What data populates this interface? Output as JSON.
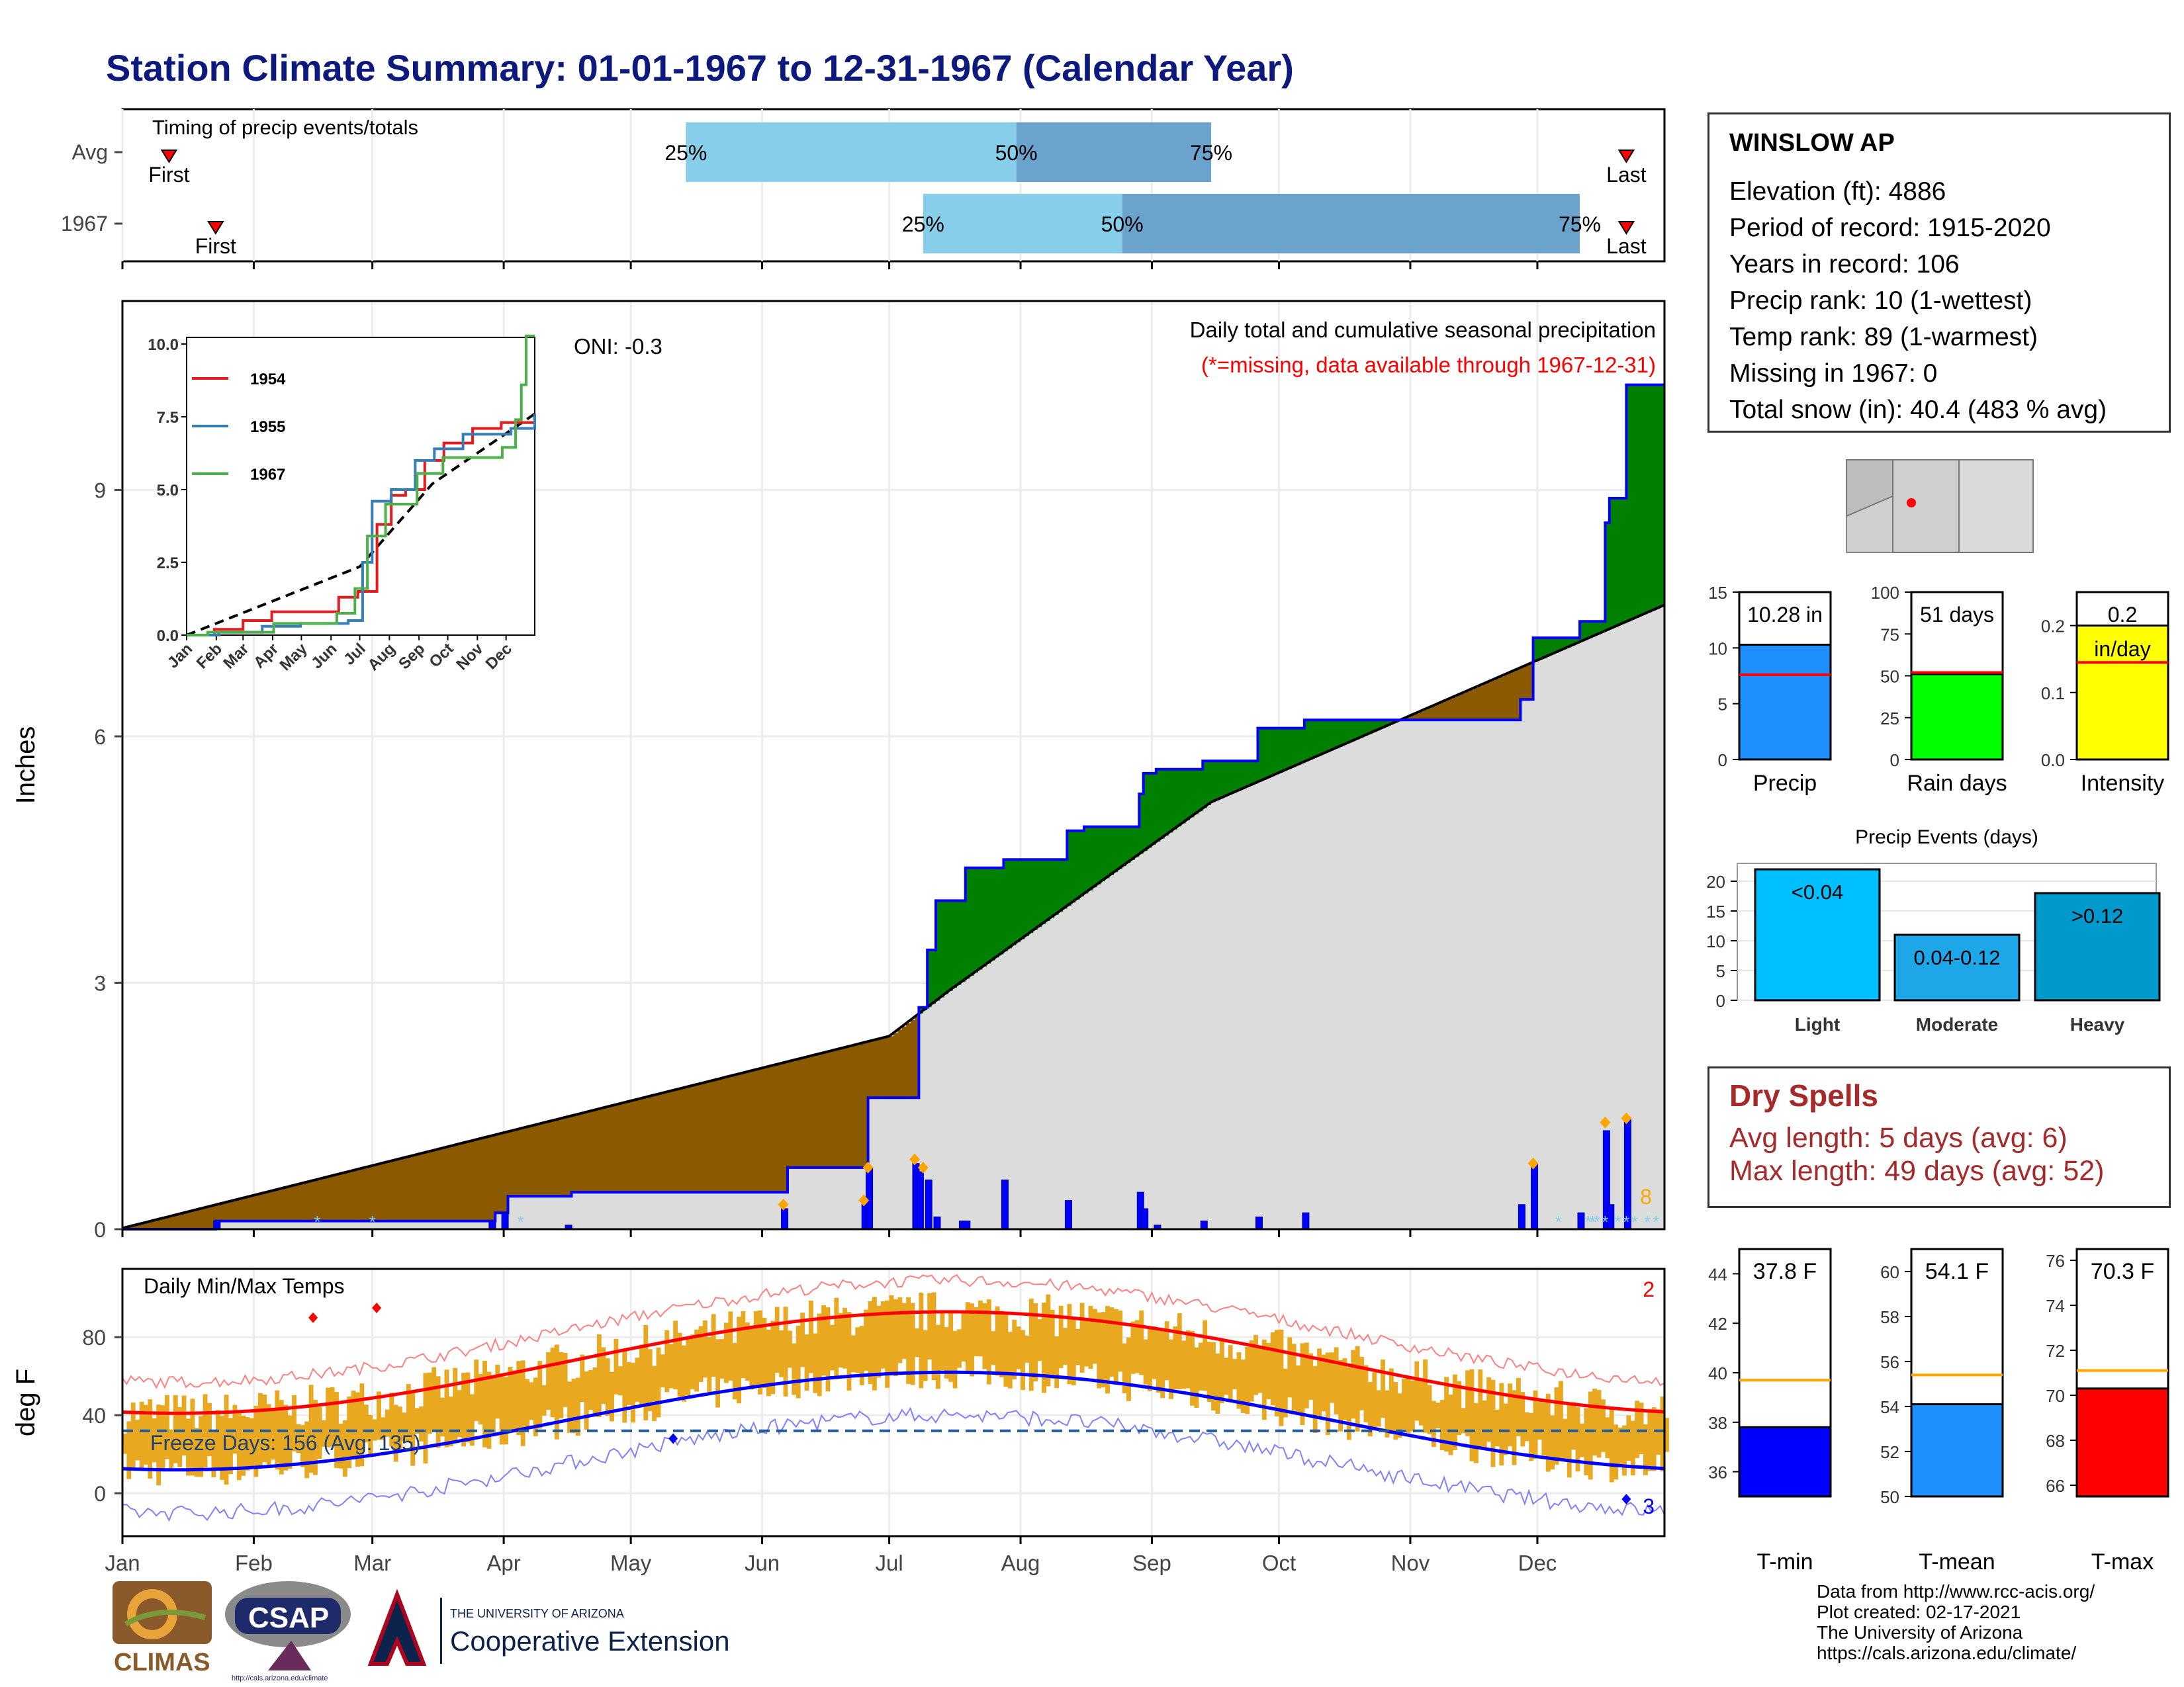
{
  "title": "Station Climate Summary: 01-01-1967 to 12-31-1967 (Calendar Year)",
  "colors": {
    "title": "#0c1a7d",
    "ahead": "#008000",
    "behind": "#8b5a00",
    "normal_fill": "#dcdcdc",
    "obs_line": "#0000ff",
    "tmax_fill": "#e8a920",
    "red": "#ff0000",
    "blue": "#0000ff",
    "q_light": "#87ceeb",
    "q_dark": "#6ba3cc",
    "dry": "#a52a2a"
  },
  "timing": {
    "label": "Timing of precip events/totals",
    "rows": [
      "Avg",
      "1967"
    ],
    "avg": {
      "first_day": 12,
      "last_day": 356,
      "p25_day": 134,
      "p50_day": 212,
      "p75_day": 258
    },
    "obs": {
      "first_day": 23,
      "last_day": 356,
      "p25_day": 190,
      "p50_day": 237,
      "p75_day": 345
    },
    "pct_labels": [
      "25%",
      "50%",
      "75%"
    ],
    "first_label": "First",
    "last_label": "Last"
  },
  "precip_panel": {
    "ylabel": "Inches",
    "ytick_labels": [
      "0",
      "3",
      "6",
      "9"
    ],
    "caption1": "Daily total and cumulative seasonal precipitation",
    "caption2": "(*=missing, data available through 1967-12-31)",
    "oni": "ONI: -0.3",
    "count_label": "8",
    "ylim": [
      0,
      11.3
    ]
  },
  "temp_panel": {
    "ylabel": "deg F",
    "ytick_labels": [
      "0",
      "40",
      "80"
    ],
    "title": "Daily Min/Max Temps",
    "freeze_label": "Freeze Days: 156 (Avg: 135)",
    "record_high_count": "2",
    "record_low_count": "3",
    "ylim": [
      -22,
      115
    ],
    "freeze_line": 32
  },
  "months": [
    "Jan",
    "Feb",
    "Mar",
    "Apr",
    "May",
    "Jun",
    "Jul",
    "Aug",
    "Sep",
    "Oct",
    "Nov",
    "Dec"
  ],
  "station": {
    "name": "WINSLOW AP",
    "lines": [
      "Elevation (ft): 4886",
      "Period of record: 1915-2020",
      "Years in record: 106",
      "Precip rank: 10 (1-wettest)",
      "Temp rank: 89 (1-warmest)",
      "Missing in 1967: 0",
      "Total snow (in): 40.4 (483 % avg)"
    ]
  },
  "summary_bars": [
    {
      "label": "Precip",
      "value_label": "10.28 in",
      "value": 10.28,
      "avg": 7.6,
      "ylim": [
        0,
        15
      ],
      "ticks": [
        "0",
        "5",
        "10",
        "15"
      ],
      "color": "#1e90ff"
    },
    {
      "label": "Rain days",
      "value_label": "51 days",
      "value": 51,
      "avg": 52,
      "ylim": [
        0,
        100
      ],
      "ticks": [
        "0",
        "25",
        "50",
        "75",
        "100"
      ],
      "color": "#00ff00"
    },
    {
      "label": "Intensity",
      "value_label": "0.2\nin/day",
      "value": 0.2,
      "avg": 0.145,
      "ylim": [
        0,
        0.25
      ],
      "ticks": [
        "0.0",
        "0.1",
        "0.2"
      ],
      "color": "#ffff00"
    }
  ],
  "precip_events": {
    "title": "Precip Events (days)",
    "categories": [
      "Light",
      "Moderate",
      "Heavy"
    ],
    "range_labels": [
      "<0.04",
      "0.04-0.12",
      ">0.12"
    ],
    "values": [
      22,
      11,
      18
    ],
    "ylim": [
      0,
      23
    ],
    "ticks": [
      "0",
      "5",
      "10",
      "15",
      "20"
    ],
    "colors": [
      "#00bfff",
      "#1ea7e8",
      "#0099cc"
    ]
  },
  "dry_spells": {
    "title": "Dry Spells",
    "avg_line": "Avg length: 5 days (avg: 6)",
    "max_line": "Max length: 49 days (avg: 52)"
  },
  "temp_bars": [
    {
      "label": "T-min",
      "value_label": "37.8 F",
      "value": 37.8,
      "avg": 39.7,
      "ylim": [
        35,
        45
      ],
      "ticks": [
        "36",
        "38",
        "40",
        "42",
        "44"
      ],
      "color": "#0000ff"
    },
    {
      "label": "T-mean",
      "value_label": "54.1 F",
      "value": 54.1,
      "avg": 55.4,
      "ylim": [
        50,
        61
      ],
      "ticks": [
        "50",
        "52",
        "54",
        "56",
        "58",
        "60"
      ],
      "color": "#1e90ff"
    },
    {
      "label": "T-max",
      "value_label": "70.3 F",
      "value": 70.3,
      "avg": 71.1,
      "ylim": [
        65.5,
        76.5
      ],
      "ticks": [
        "66",
        "68",
        "70",
        "72",
        "74",
        "76"
      ],
      "color": "#ff0000"
    }
  ],
  "inset": {
    "years": [
      "1954",
      "1955",
      "1967"
    ],
    "colors": [
      "#e41a1c",
      "#377eb8",
      "#4daf4a"
    ],
    "ytick_labels": [
      "0.0",
      "2.5",
      "5.0",
      "7.5",
      "10.0"
    ],
    "ylim": [
      0,
      10
    ]
  },
  "credits": [
    "Data from http://www.rcc-acis.org/",
    "Plot created: 02-17-2021",
    "The University of Arizona",
    "https://cals.arizona.edu/climate/"
  ],
  "logos": {
    "climas": "CLIMAS",
    "csap": "CSAP",
    "csap_url": "http://cals.arizona.edu/climate",
    "ua_line1": "THE UNIVERSITY OF ARIZONA",
    "ua_line2": "Cooperative Extension"
  }
}
